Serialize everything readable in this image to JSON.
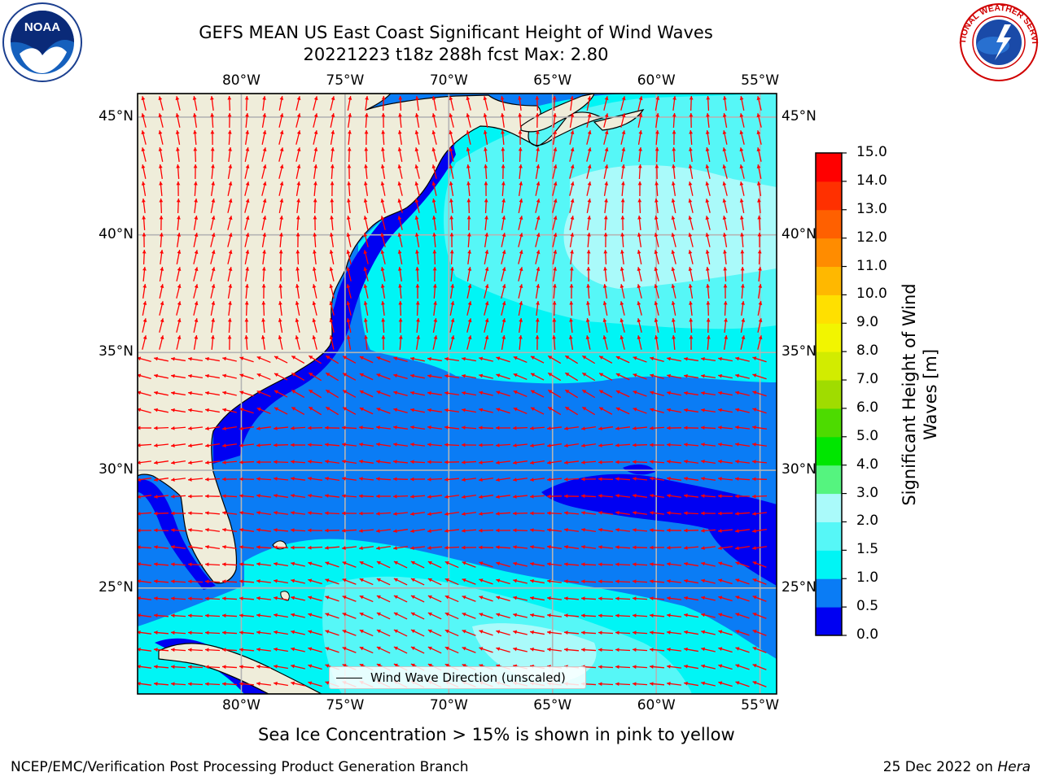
{
  "title_line1": "GEFS MEAN US East Coast Significant Height of Wind Waves",
  "title_line2": "20221223 t18z 288h fcst   Max: 2.80",
  "lon_ticks": [
    {
      "label": "80°W",
      "lon": -80
    },
    {
      "label": "75°W",
      "lon": -75
    },
    {
      "label": "70°W",
      "lon": -70
    },
    {
      "label": "65°W",
      "lon": -65
    },
    {
      "label": "60°W",
      "lon": -60
    },
    {
      "label": "55°W",
      "lon": -55
    }
  ],
  "lat_ticks": [
    {
      "label": "45°N",
      "lat": 45
    },
    {
      "label": "40°N",
      "lat": 40
    },
    {
      "label": "35°N",
      "lat": 35
    },
    {
      "label": "30°N",
      "lat": 30
    },
    {
      "label": "25°N",
      "lat": 25
    }
  ],
  "extent": {
    "lon_min": -85,
    "lon_max": -54.2,
    "lat_min": 20.5,
    "lat_max": 46
  },
  "colorbar": {
    "label_line1": "Significant Height of Wind",
    "label_line2": "Waves [m]",
    "ticks": [
      "0.0",
      "0.5",
      "1.0",
      "1.5",
      "2.0",
      "3.0",
      "4.0",
      "5.0",
      "6.0",
      "7.0",
      "8.0",
      "9.0",
      "10.0",
      "11.0",
      "12.0",
      "13.0",
      "14.0",
      "15.0"
    ],
    "colors": [
      "#0000f2",
      "#0a7cf5",
      "#00f5f5",
      "#56f7f7",
      "#aafafa",
      "#55f47f",
      "#00e600",
      "#4ddb00",
      "#a0dc00",
      "#d2ec00",
      "#f2f500",
      "#ffe000",
      "#ffb800",
      "#ff8c00",
      "#ff6000",
      "#ff3000",
      "#ff0000"
    ]
  },
  "legend": {
    "label": "Wind Wave Direction (unscaled)"
  },
  "caption": "Sea Ice Concentration > 15% is shown in pink to yellow",
  "footer_left": "NCEP/EMC/Verification Post Processing Product Generation Branch",
  "footer_right_date": "25 Dec 2022 on",
  "footer_right_machine": "Hera",
  "logos": {
    "left": "NOAA",
    "right": "NATIONAL WEATHER SERVICE"
  },
  "colors": {
    "land": "#efedda",
    "grid": "#b4b4b4",
    "arrow": "#ff0000"
  }
}
